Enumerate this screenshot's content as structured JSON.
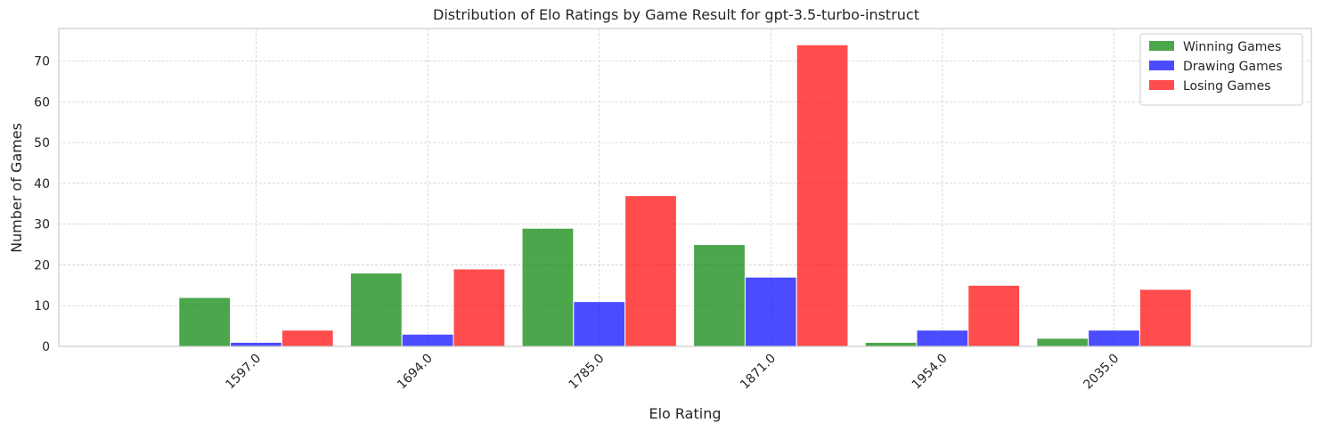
{
  "chart_data": {
    "type": "bar",
    "title": "Distribution of Elo Ratings by Game Result for gpt-3.5-turbo-instruct",
    "xlabel": "Elo Rating",
    "ylabel": "Number of Games",
    "categories": [
      "1597.0",
      "1694.0",
      "1785.0",
      "1871.0",
      "1954.0",
      "2035.0"
    ],
    "series": [
      {
        "name": "Winning Games",
        "color": "#008000",
        "values": [
          12,
          18,
          29,
          25,
          1,
          2
        ]
      },
      {
        "name": "Drawing Games",
        "color": "#0000ff",
        "values": [
          1,
          3,
          11,
          17,
          4,
          4
        ]
      },
      {
        "name": "Losing Games",
        "color": "#ff0000",
        "values": [
          4,
          19,
          37,
          74,
          15,
          14
        ]
      }
    ],
    "ylim": [
      0,
      78
    ],
    "yticks": [
      0,
      10,
      20,
      30,
      40,
      50,
      60,
      70
    ],
    "grid": true,
    "legend_position": "top-right"
  }
}
